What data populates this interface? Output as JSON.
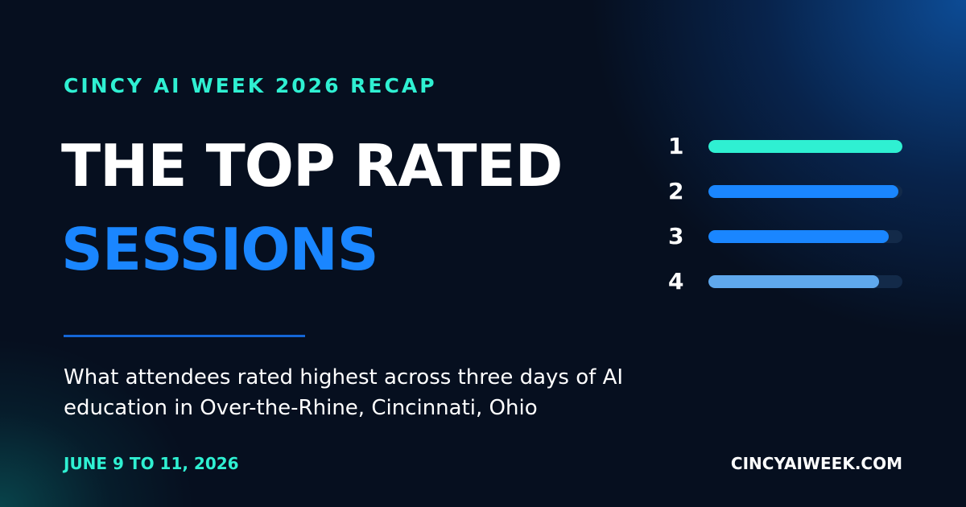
{
  "eyebrow": "CINCY AI WEEK 2026 RECAP",
  "headline": {
    "line1": "THE TOP RATED",
    "line2": "SESSIONS"
  },
  "subtitle": "What attendees rated highest across three days of AI education in Over-the-Rhine, Cincinnati, Ohio",
  "footer": {
    "dates": "JUNE 9 TO 11, 2026",
    "website": "CINCYAIWEEK.COM"
  },
  "ranking": [
    {
      "rank": "1",
      "level": 1.0,
      "color": "#2ff0d2"
    },
    {
      "rank": "2",
      "level": 0.98,
      "color": "#1a86ff"
    },
    {
      "rank": "3",
      "level": 0.93,
      "color": "#1a86ff"
    },
    {
      "rank": "4",
      "level": 0.88,
      "color": "#5fa8ec"
    }
  ],
  "colors": {
    "background": "#060f1f",
    "accent_teal": "#2ff0d2",
    "accent_blue": "#1a86ff",
    "track": "#132a49"
  }
}
